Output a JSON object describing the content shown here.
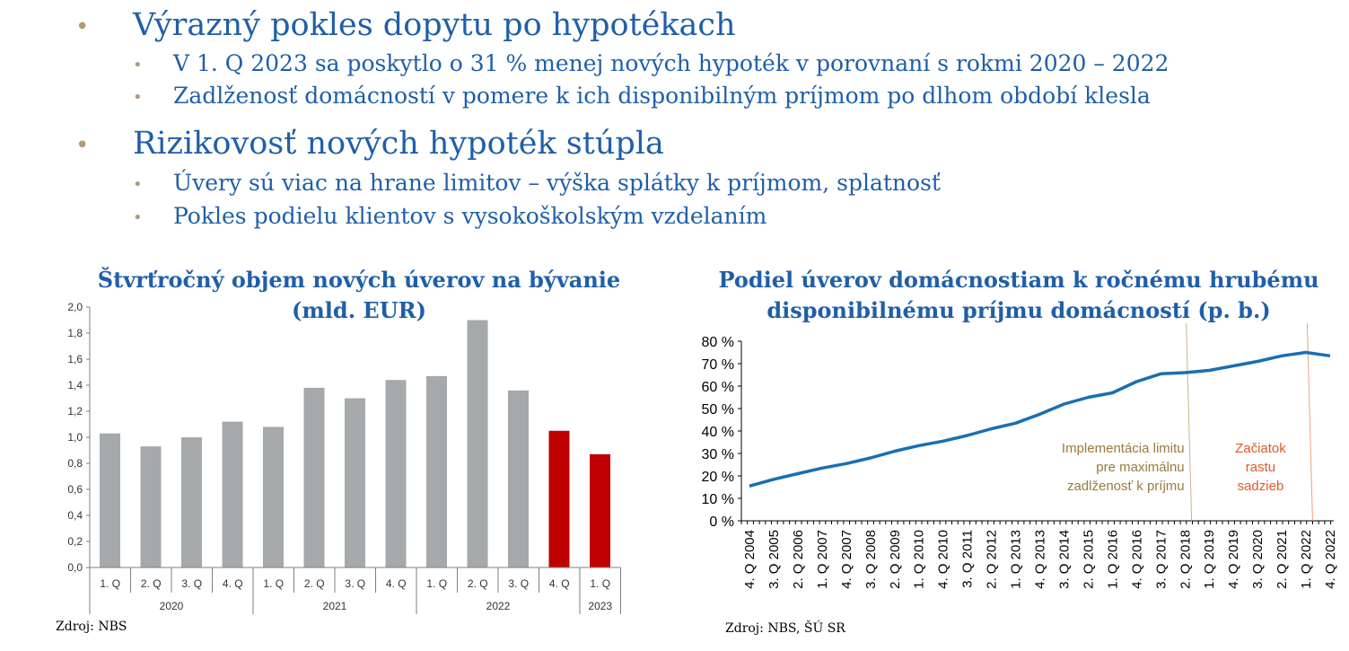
{
  "bullets": [
    {
      "text": "Výrazný pokles dopytu po hypotékach",
      "sub": [
        "V 1. Q 2023 sa poskytlo o 31 % menej nových hypoték v porovnaní s rokmi 2020 – 2022",
        "Zadlženosť domácností v pomere k ich disponibilným príjmom po dlhom období klesla"
      ]
    },
    {
      "text": "Rizikovosť nových hypoték stúpla",
      "sub": [
        "Úvery sú viac na hrane limitov – výška splátky k príjmom, splatnosť",
        "Pokles podielu klientov s vysokoškolským vzdelaním"
      ]
    }
  ],
  "chart_data": [
    {
      "type": "bar",
      "title": [
        "Štvrťročný objem nových úverov na bývanie",
        "(mld. EUR)"
      ],
      "categories": [
        "1. Q",
        "2. Q",
        "3. Q",
        "4. Q",
        "1. Q",
        "2. Q",
        "3. Q",
        "4. Q",
        "1. Q",
        "2. Q",
        "3. Q",
        "4. Q",
        "1. Q"
      ],
      "groups": [
        {
          "label": "2020",
          "count": 4
        },
        {
          "label": "2021",
          "count": 4
        },
        {
          "label": "2022",
          "count": 4
        },
        {
          "label": "2023",
          "count": 1
        }
      ],
      "values": [
        1.03,
        0.93,
        1.0,
        1.12,
        1.08,
        1.38,
        1.3,
        1.44,
        1.47,
        1.9,
        1.36,
        1.05,
        0.87
      ],
      "highlight": [
        false,
        false,
        false,
        false,
        false,
        false,
        false,
        false,
        false,
        false,
        false,
        true,
        true
      ],
      "colors": {
        "normal": "#a5a9ab",
        "highlight": "#c00000"
      },
      "yticks": [
        "2,0",
        "1,8",
        "1,6",
        "1,4",
        "1,2",
        "1,0",
        "0,8",
        "0,6",
        "0,4",
        "0,2",
        "0,0"
      ],
      "ylim": [
        0,
        2.0
      ],
      "source": "Zdroj: NBS"
    },
    {
      "type": "line",
      "title": [
        "Podiel úverov domácnostiam k ročnému hrubému",
        "disponibilnému príjmu domácností (p. b.)"
      ],
      "yticks": [
        "80 %",
        "70 %",
        "60 %",
        "50 %",
        "40 %",
        "30 %",
        "20 %",
        "10 %",
        "0 %"
      ],
      "ylim": [
        0,
        80
      ],
      "xticks": [
        "4. Q 2004",
        "3. Q 2005",
        "2. Q 2006",
        "1. Q 2007",
        "4. Q 2007",
        "3. Q 2008",
        "2. Q 2009",
        "1. Q 2010",
        "4. Q 2010",
        "3. Q 2011",
        "2. Q 2012",
        "1. Q 2013",
        "4. Q 2013",
        "3. Q 2014",
        "2. Q 2015",
        "1. Q 2016",
        "4. Q 2016",
        "3. Q 2017",
        "2. Q 2018",
        "1. Q 2019",
        "4. Q 2019",
        "3. Q 2020",
        "2. Q 2021",
        "1. Q 2022",
        "4. Q 2022"
      ],
      "series": [
        {
          "values": [
            15.5,
            18.5,
            21,
            23.5,
            25.5,
            28,
            31,
            33.5,
            35.5,
            38,
            41,
            43.5,
            47.5,
            52,
            55,
            57,
            62,
            65.5,
            66,
            67,
            69,
            71,
            73.5,
            75,
            73.5
          ]
        }
      ],
      "color": "#1a6fb0",
      "annotations": [
        {
          "lines": [
            "Implementácia limitu",
            "pre maximálnu",
            "zadlženosť k príjmu"
          ],
          "color": "#9c7a3c"
        },
        {
          "lines": [
            "Začiatok",
            "rastu",
            "sadzieb"
          ],
          "color": "#e0582a"
        }
      ],
      "source": "Zdroj: NBS, ŠÚ SR"
    }
  ]
}
